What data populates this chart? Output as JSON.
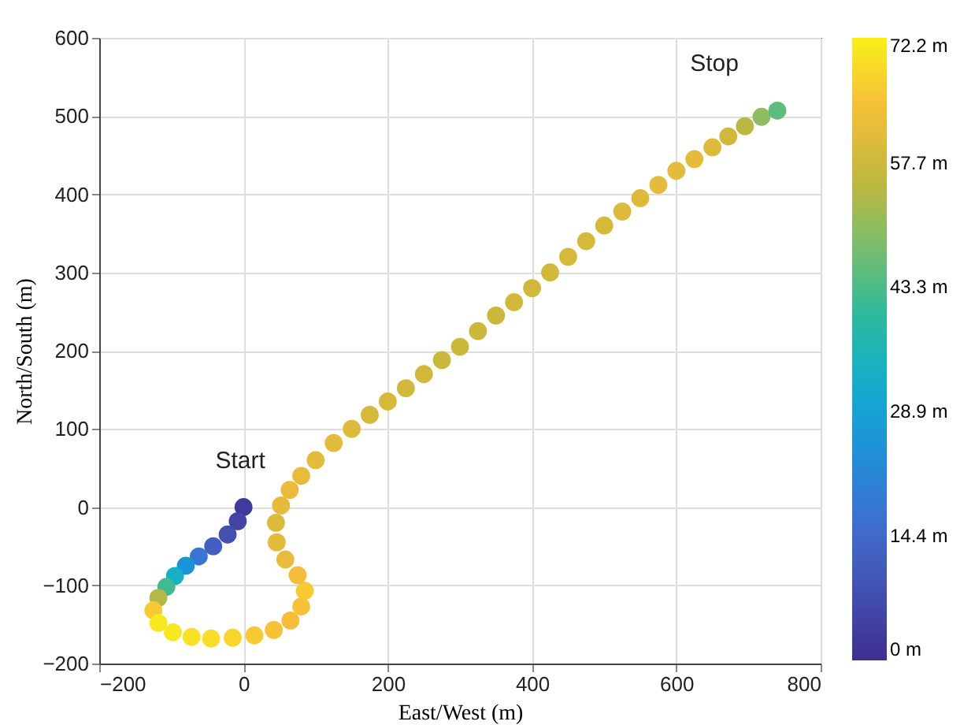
{
  "chart_data": {
    "type": "scatter",
    "xlabel": "East/West (m)",
    "ylabel": "North/South (m)",
    "x": [
      0,
      -8,
      -22,
      -42,
      -62,
      -80,
      -95,
      -107,
      -118,
      -125,
      -118,
      -98,
      -72,
      -45,
      -15,
      15,
      42,
      65,
      80,
      85,
      75,
      58,
      46,
      45,
      52,
      64,
      80,
      100,
      125,
      150,
      175,
      200,
      225,
      250,
      275,
      300,
      325,
      350,
      375,
      400,
      425,
      450,
      475,
      500,
      525,
      550,
      575,
      600,
      625,
      650,
      672,
      695,
      718,
      740
    ],
    "values": [
      0,
      -18,
      -35,
      -50,
      -63,
      -75,
      -88,
      -102,
      -116,
      -132,
      -148,
      -160,
      -166,
      -168,
      -167,
      -164,
      -157,
      -145,
      -127,
      -107,
      -87,
      -67,
      -45,
      -20,
      2,
      22,
      40,
      60,
      82,
      100,
      118,
      135,
      152,
      170,
      188,
      205,
      225,
      245,
      262,
      280,
      300,
      320,
      340,
      360,
      378,
      395,
      412,
      430,
      445,
      460,
      474,
      487,
      499,
      507
    ],
    "cvalues": [
      3,
      5,
      8,
      12,
      18,
      25,
      33,
      42,
      54,
      66,
      71,
      71,
      70,
      69,
      68,
      66,
      65,
      64,
      65,
      66,
      64,
      62,
      61,
      60,
      61,
      62,
      62,
      61,
      61,
      60,
      59,
      59,
      58,
      58,
      57,
      57,
      57,
      57,
      58,
      58,
      58,
      59,
      59,
      59,
      60,
      60,
      61,
      61,
      61,
      60,
      58,
      55,
      50,
      45
    ],
    "xlim": [
      -200,
      800
    ],
    "xticks": [
      -200,
      0,
      200,
      400,
      600,
      800
    ],
    "ylim": [
      -200,
      600
    ],
    "yticks": [
      -200,
      -100,
      0,
      100,
      200,
      300,
      400,
      500,
      600
    ],
    "clim": [
      0,
      72.2
    ],
    "cticks": [
      {
        "value": 0,
        "label": "0 m"
      },
      {
        "value": 14.4,
        "label": "14.4 m"
      },
      {
        "value": 28.9,
        "label": "28.9 m"
      },
      {
        "value": 43.3,
        "label": "43.3 m"
      },
      {
        "value": 57.7,
        "label": "57.7 m"
      },
      {
        "value": 72.2,
        "label": "72.2 m"
      }
    ],
    "grid": true,
    "marker": "circle",
    "annotations": [
      {
        "text": "Start",
        "x": 0,
        "y": 0
      },
      {
        "text": "Stop",
        "x": 740,
        "y": 507
      }
    ]
  }
}
